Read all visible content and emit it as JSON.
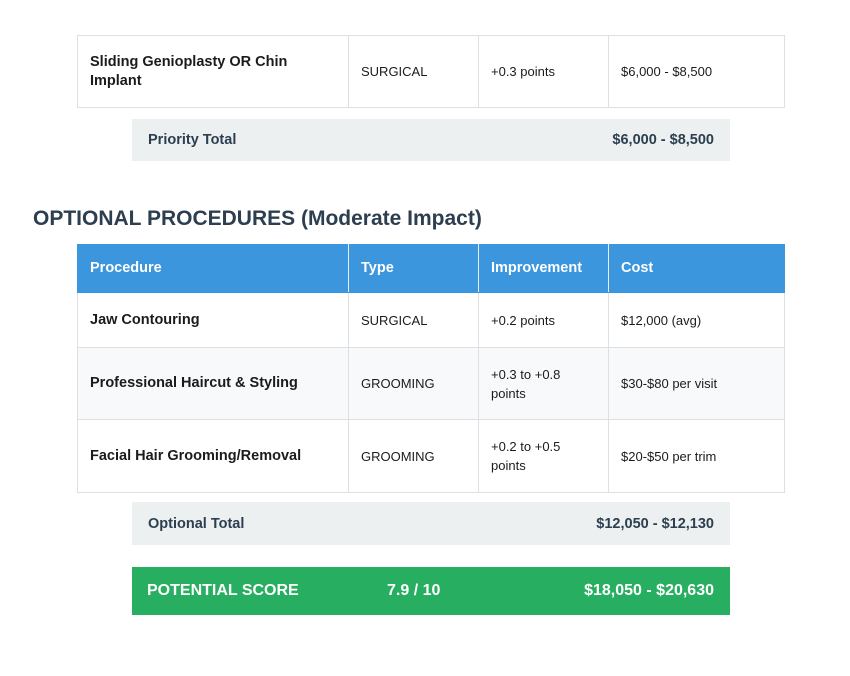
{
  "top_table": {
    "row": {
      "procedure": "Sliding Genioplasty OR Chin Implant",
      "type": "SURGICAL",
      "improvement": "+0.3 points",
      "cost": "$6,000 - $8,500"
    }
  },
  "priority_total": {
    "label": "Priority Total",
    "value": "$6,000 - $8,500"
  },
  "optional_section": {
    "heading": "OPTIONAL PROCEDURES (Moderate Impact)",
    "headers": [
      "Procedure",
      "Type",
      "Improvement",
      "Cost"
    ],
    "rows": [
      {
        "procedure": "Jaw Contouring",
        "type": "SURGICAL",
        "improvement": "+0.2 points",
        "cost": "$12,000 (avg)"
      },
      {
        "procedure": "Professional Haircut & Styling",
        "type": "GROOMING",
        "improvement": "+0.3 to +0.8 points",
        "cost": "$30-$80 per visit"
      },
      {
        "procedure": "Facial Hair Grooming/Removal",
        "type": "GROOMING",
        "improvement": "+0.2 to +0.5 points",
        "cost": "$20-$50 per trim"
      }
    ]
  },
  "optional_total": {
    "label": "Optional Total",
    "value": "$12,050 - $12,130"
  },
  "potential_score": {
    "label": "POTENTIAL SCORE",
    "score": "7.9 / 10",
    "cost": "$18,050 - $20,630"
  },
  "colors": {
    "header_blue": "#3b96dd",
    "score_green": "#27ae60",
    "total_bg": "#ecf0f1",
    "heading_text": "#2c3e50"
  }
}
